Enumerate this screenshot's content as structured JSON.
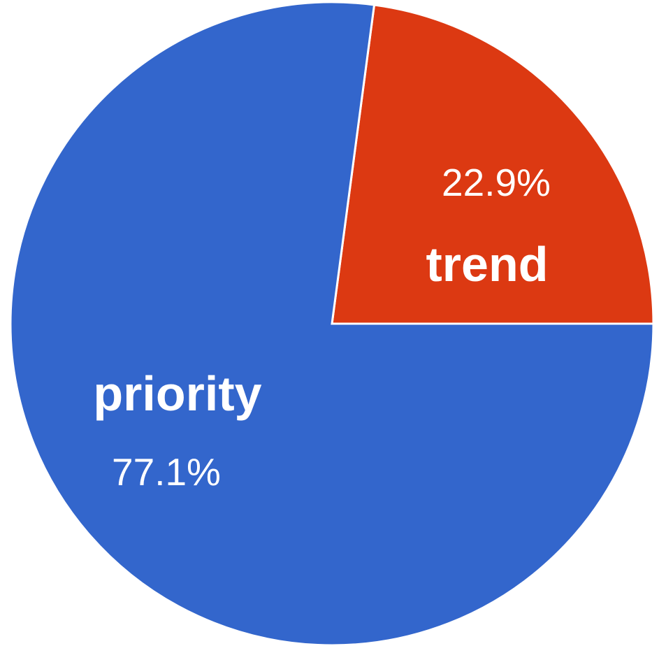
{
  "chart_data": {
    "type": "pie",
    "title": "",
    "slices": [
      {
        "label": "trend",
        "value": 22.9,
        "value_label": "22.9%",
        "color": "#dc3912"
      },
      {
        "label": "priority",
        "value": 77.1,
        "value_label": "77.1%",
        "color": "#3366cc"
      }
    ],
    "legend": "none",
    "labels_inside": true
  }
}
